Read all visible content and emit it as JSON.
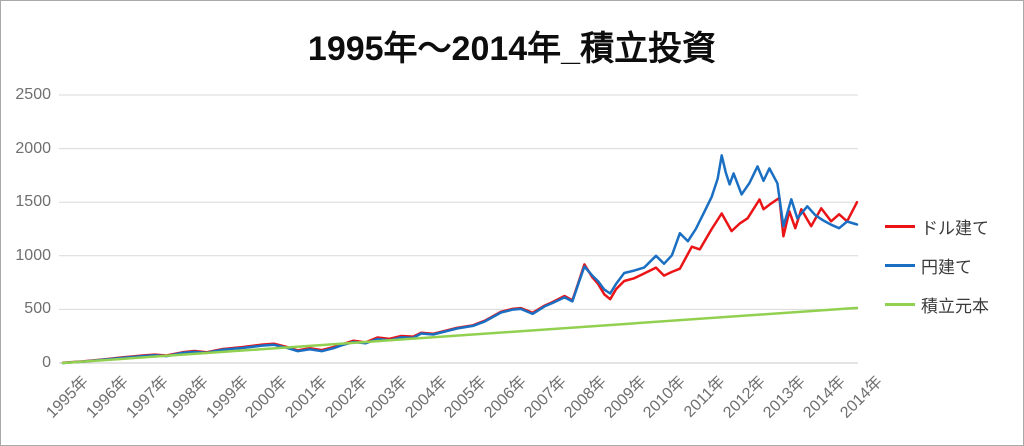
{
  "title": "1995年～2014年_積立投資",
  "chart_data": {
    "type": "line",
    "title": "1995年～2014年_積立投資",
    "xlabel": "",
    "ylabel": "",
    "grid": "horizontal",
    "legend_position": "right",
    "ylim": [
      0,
      2500
    ],
    "yticks": [
      0,
      500,
      1000,
      1500,
      2000,
      2500
    ],
    "xlim": [
      1995,
      2014.95
    ],
    "xticks": [
      {
        "v": 1995,
        "label": "1995年"
      },
      {
        "v": 1996,
        "label": "1996年"
      },
      {
        "v": 1997,
        "label": "1997年"
      },
      {
        "v": 1998,
        "label": "1998年"
      },
      {
        "v": 1999,
        "label": "1999年"
      },
      {
        "v": 2000,
        "label": "2000年"
      },
      {
        "v": 2001,
        "label": "2001年"
      },
      {
        "v": 2002,
        "label": "2002年"
      },
      {
        "v": 2003,
        "label": "2003年"
      },
      {
        "v": 2004,
        "label": "2004年"
      },
      {
        "v": 2005,
        "label": "2005年"
      },
      {
        "v": 2006,
        "label": "2006年"
      },
      {
        "v": 2007,
        "label": "2007年"
      },
      {
        "v": 2008,
        "label": "2008年"
      },
      {
        "v": 2009,
        "label": "2009年"
      },
      {
        "v": 2010,
        "label": "2010年"
      },
      {
        "v": 2011,
        "label": "2011年"
      },
      {
        "v": 2012,
        "label": "2012年"
      },
      {
        "v": 2013,
        "label": "2013年"
      },
      {
        "v": 2014,
        "label": "2014年"
      },
      {
        "v": 2014.95,
        "label": "2014年"
      }
    ],
    "series": [
      {
        "key": "usd",
        "name": "ドル建て",
        "color": "#ea1417",
        "points": [
          [
            1995.0,
            2
          ],
          [
            1995.5,
            15
          ],
          [
            1996.0,
            33
          ],
          [
            1996.5,
            52
          ],
          [
            1997.0,
            70
          ],
          [
            1997.3,
            78
          ],
          [
            1997.6,
            70
          ],
          [
            1998.0,
            100
          ],
          [
            1998.3,
            112
          ],
          [
            1998.6,
            100
          ],
          [
            1999.0,
            130
          ],
          [
            1999.5,
            148
          ],
          [
            2000.0,
            172
          ],
          [
            2000.3,
            180
          ],
          [
            2000.6,
            152
          ],
          [
            2000.9,
            118
          ],
          [
            2001.2,
            138
          ],
          [
            2001.5,
            120
          ],
          [
            2001.8,
            148
          ],
          [
            2002.0,
            172
          ],
          [
            2002.3,
            208
          ],
          [
            2002.6,
            192
          ],
          [
            2002.9,
            238
          ],
          [
            2003.2,
            225
          ],
          [
            2003.5,
            252
          ],
          [
            2003.8,
            246
          ],
          [
            2004.0,
            282
          ],
          [
            2004.3,
            272
          ],
          [
            2004.6,
            300
          ],
          [
            2004.9,
            328
          ],
          [
            2005.3,
            352
          ],
          [
            2005.6,
            395
          ],
          [
            2006.0,
            478
          ],
          [
            2006.3,
            505
          ],
          [
            2006.5,
            512
          ],
          [
            2006.8,
            468
          ],
          [
            2007.1,
            535
          ],
          [
            2007.3,
            568
          ],
          [
            2007.6,
            625
          ],
          [
            2007.8,
            585
          ],
          [
            2007.95,
            750
          ],
          [
            2008.1,
            920
          ],
          [
            2008.3,
            800
          ],
          [
            2008.45,
            735
          ],
          [
            2008.6,
            640
          ],
          [
            2008.75,
            595
          ],
          [
            2008.9,
            690
          ],
          [
            2009.1,
            765
          ],
          [
            2009.35,
            790
          ],
          [
            2009.6,
            835
          ],
          [
            2009.9,
            890
          ],
          [
            2010.1,
            815
          ],
          [
            2010.3,
            850
          ],
          [
            2010.5,
            880
          ],
          [
            2010.8,
            1085
          ],
          [
            2011.0,
            1060
          ],
          [
            2011.3,
            1250
          ],
          [
            2011.55,
            1395
          ],
          [
            2011.8,
            1230
          ],
          [
            2012.0,
            1300
          ],
          [
            2012.2,
            1350
          ],
          [
            2012.5,
            1525
          ],
          [
            2012.6,
            1435
          ],
          [
            2012.8,
            1490
          ],
          [
            2013.0,
            1540
          ],
          [
            2013.1,
            1182
          ],
          [
            2013.25,
            1415
          ],
          [
            2013.4,
            1257
          ],
          [
            2013.55,
            1434
          ],
          [
            2013.8,
            1276
          ],
          [
            2014.05,
            1443
          ],
          [
            2014.3,
            1322
          ],
          [
            2014.5,
            1387
          ],
          [
            2014.7,
            1322
          ],
          [
            2014.95,
            1500
          ]
        ]
      },
      {
        "key": "jpy",
        "name": "円建て",
        "color": "#1a6fc2",
        "points": [
          [
            1995.0,
            0
          ],
          [
            1995.5,
            13
          ],
          [
            1996.0,
            30
          ],
          [
            1996.5,
            48
          ],
          [
            1997.0,
            64
          ],
          [
            1997.3,
            72
          ],
          [
            1997.6,
            64
          ],
          [
            1998.0,
            94
          ],
          [
            1998.3,
            104
          ],
          [
            1998.6,
            94
          ],
          [
            1999.0,
            124
          ],
          [
            1999.5,
            140
          ],
          [
            2000.0,
            162
          ],
          [
            2000.3,
            170
          ],
          [
            2000.6,
            144
          ],
          [
            2000.9,
            110
          ],
          [
            2001.2,
            128
          ],
          [
            2001.5,
            110
          ],
          [
            2001.8,
            138
          ],
          [
            2002.0,
            165
          ],
          [
            2002.3,
            196
          ],
          [
            2002.6,
            184
          ],
          [
            2002.9,
            224
          ],
          [
            2003.2,
            212
          ],
          [
            2003.5,
            240
          ],
          [
            2003.8,
            234
          ],
          [
            2004.0,
            275
          ],
          [
            2004.3,
            266
          ],
          [
            2004.6,
            294
          ],
          [
            2004.9,
            322
          ],
          [
            2005.3,
            346
          ],
          [
            2005.6,
            388
          ],
          [
            2006.0,
            470
          ],
          [
            2006.3,
            498
          ],
          [
            2006.5,
            505
          ],
          [
            2006.8,
            458
          ],
          [
            2007.1,
            528
          ],
          [
            2007.3,
            560
          ],
          [
            2007.6,
            612
          ],
          [
            2007.8,
            575
          ],
          [
            2007.95,
            740
          ],
          [
            2008.1,
            900
          ],
          [
            2008.3,
            815
          ],
          [
            2008.45,
            760
          ],
          [
            2008.6,
            685
          ],
          [
            2008.75,
            648
          ],
          [
            2008.9,
            740
          ],
          [
            2009.1,
            840
          ],
          [
            2009.35,
            862
          ],
          [
            2009.6,
            890
          ],
          [
            2009.9,
            1000
          ],
          [
            2010.1,
            925
          ],
          [
            2010.3,
            1005
          ],
          [
            2010.5,
            1211
          ],
          [
            2010.7,
            1136
          ],
          [
            2010.9,
            1250
          ],
          [
            2011.1,
            1400
          ],
          [
            2011.3,
            1550
          ],
          [
            2011.45,
            1720
          ],
          [
            2011.55,
            1937
          ],
          [
            2011.65,
            1780
          ],
          [
            2011.75,
            1666
          ],
          [
            2011.85,
            1769
          ],
          [
            2012.05,
            1573
          ],
          [
            2012.25,
            1680
          ],
          [
            2012.45,
            1834
          ],
          [
            2012.6,
            1700
          ],
          [
            2012.75,
            1815
          ],
          [
            2012.95,
            1676
          ],
          [
            2013.1,
            1275
          ],
          [
            2013.3,
            1527
          ],
          [
            2013.45,
            1350
          ],
          [
            2013.7,
            1462
          ],
          [
            2013.9,
            1380
          ],
          [
            2014.1,
            1330
          ],
          [
            2014.3,
            1290
          ],
          [
            2014.5,
            1257
          ],
          [
            2014.7,
            1320
          ],
          [
            2014.95,
            1292
          ]
        ]
      },
      {
        "key": "principal",
        "name": "積立元本",
        "color": "#92d050",
        "points": [
          [
            1995.0,
            0
          ],
          [
            2014.95,
            514
          ]
        ]
      }
    ]
  }
}
